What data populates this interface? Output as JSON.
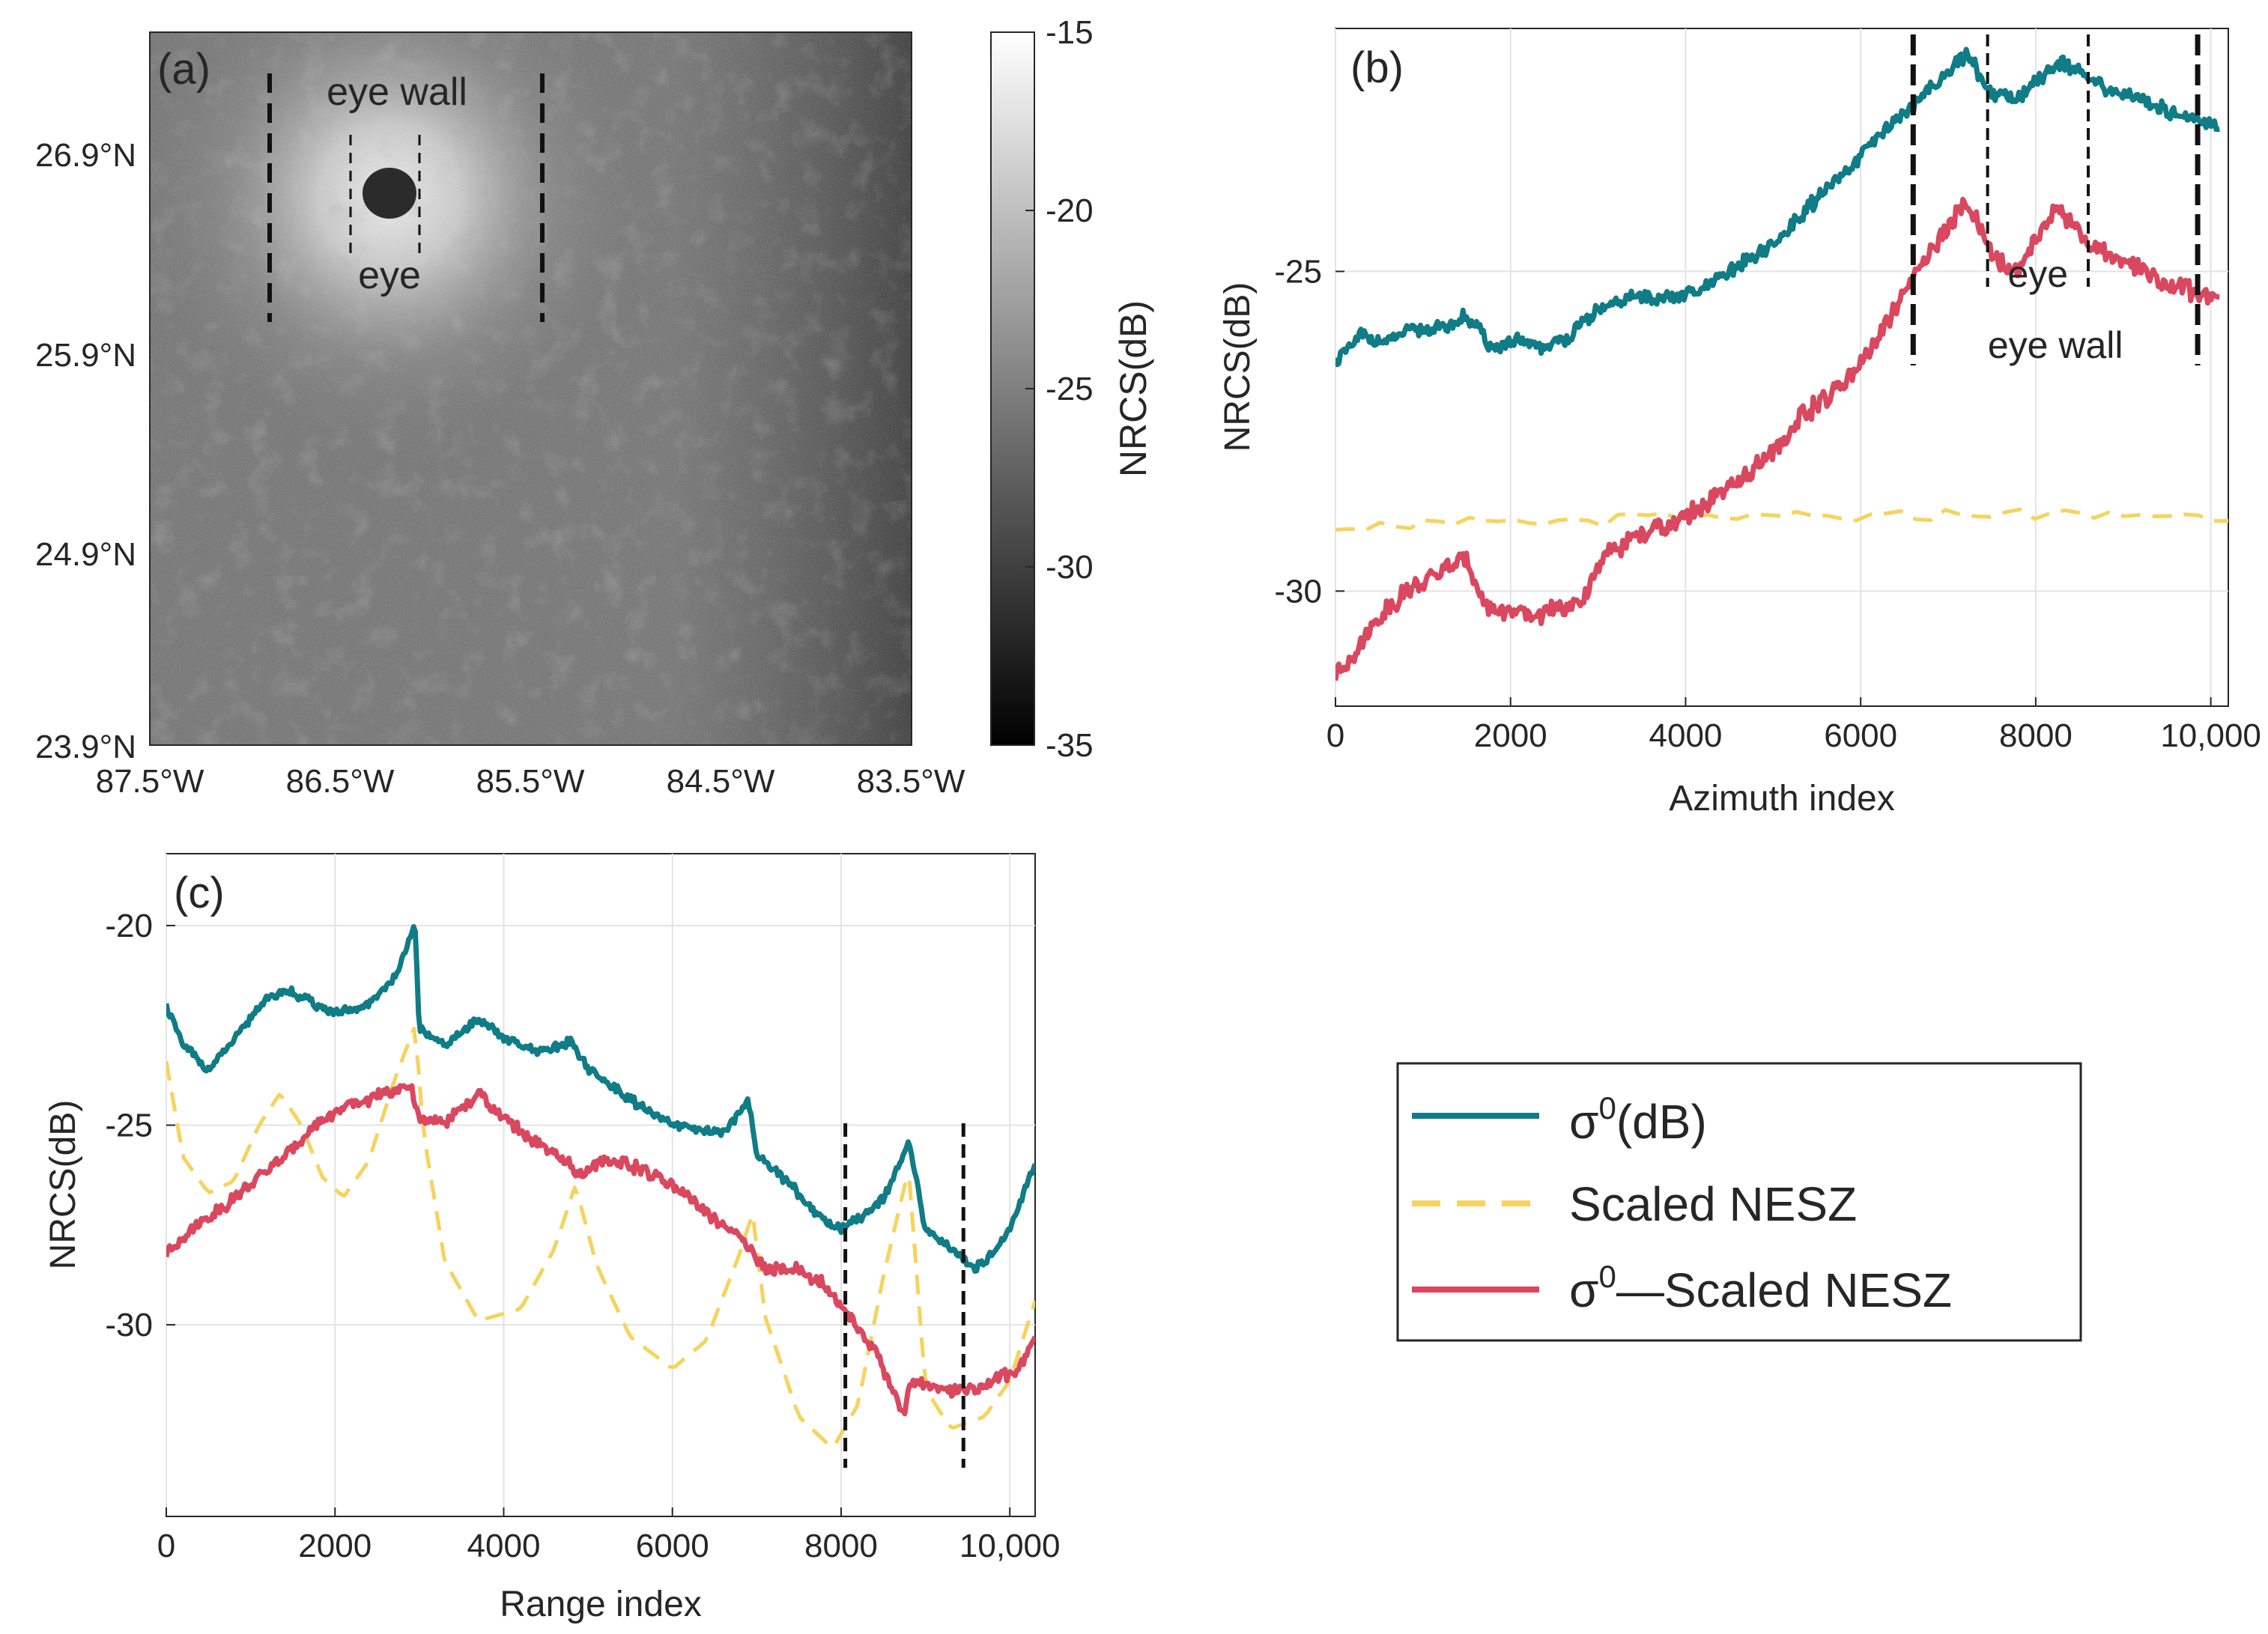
{
  "figure": {
    "colors": {
      "sigma": "#0f7c86",
      "nesz": "#f6d35e",
      "corrected": "#d9485f",
      "axis": "#262626",
      "grid": "#e3e3e3"
    }
  },
  "panel_a": {
    "label": "(a)",
    "lat_labels": [
      "26.9°N",
      "25.9°N",
      "24.9°N",
      "23.9°N"
    ],
    "lon_labels": [
      "87.5°W",
      "86.5°W",
      "85.5°W",
      "84.5°W",
      "83.5°W"
    ],
    "annotation_eye_wall": "eye wall",
    "annotation_eye": "eye",
    "colorbar": {
      "label": "NRCS(dB)",
      "ticks": [
        "-15",
        "-20",
        "-25",
        "-30",
        "-35"
      ],
      "range": [
        -35,
        -15
      ]
    }
  },
  "legend": {
    "sigma_base": "σ",
    "sigma_sup": "0",
    "sigma_tail": "(dB)",
    "nesz": "Scaled NESZ",
    "corr_base": "σ",
    "corr_sup": "0",
    "corr_tail": "—Scaled NESZ"
  },
  "chart_data": [
    {
      "id": "b",
      "type": "line",
      "panel_label": "(b)",
      "xlabel": "Azimuth index",
      "ylabel": "NRCS(dB)",
      "xlim": [
        0,
        10200
      ],
      "ylim": [
        -31.8,
        -21.2
      ],
      "xticks": [
        0,
        2000,
        4000,
        6000,
        8000,
        10000
      ],
      "xtick_labels": [
        "0",
        "2000",
        "4000",
        "6000",
        "8000",
        "10,000"
      ],
      "yticks": [
        -25,
        -30
      ],
      "ytick_labels": [
        "-25",
        "-30"
      ],
      "annotations": {
        "eye": "eye",
        "eye_wall": "eye wall"
      },
      "eye_bounds": [
        7450,
        8600
      ],
      "eye_wall_bounds": [
        6600,
        9850
      ],
      "series": [
        {
          "name": "σ0(dB)",
          "key": "sigma",
          "x": [
            0,
            300,
            600,
            900,
            1200,
            1500,
            1800,
            2100,
            2400,
            2700,
            3000,
            3400,
            3800,
            4200,
            4600,
            5000,
            5400,
            5800,
            6200,
            6600,
            6900,
            7200,
            7500,
            7800,
            8100,
            8300,
            8600,
            8900,
            9200,
            9500,
            9800,
            10100
          ],
          "y": [
            -26.4,
            -26.0,
            -26.1,
            -25.9,
            -25.9,
            -25.7,
            -26.2,
            -26.1,
            -26.2,
            -26.0,
            -25.6,
            -25.4,
            -25.4,
            -25.3,
            -24.9,
            -24.6,
            -24.0,
            -23.5,
            -22.9,
            -22.4,
            -22.0,
            -21.6,
            -22.2,
            -22.3,
            -21.9,
            -21.7,
            -22.0,
            -22.2,
            -22.3,
            -22.5,
            -22.6,
            -22.7
          ]
        },
        {
          "name": "Scaled NESZ",
          "key": "nesz",
          "x": [
            0,
            1000,
            2000,
            3000,
            4000,
            5000,
            6000,
            7000,
            8000,
            9000,
            10200
          ],
          "y": [
            -28.95,
            -28.95,
            -28.95,
            -28.9,
            -28.85,
            -28.85,
            -28.85,
            -28.8,
            -28.8,
            -28.8,
            -28.85
          ]
        },
        {
          "name": "σ0—Scaled NESZ",
          "key": "corrected",
          "x": [
            0,
            200,
            500,
            800,
            1100,
            1300,
            1500,
            1700,
            1900,
            2200,
            2500,
            2800,
            3100,
            3500,
            3900,
            4300,
            4700,
            5000,
            5300,
            5700,
            6100,
            6500,
            6800,
            7000,
            7200,
            7400,
            7600,
            7800,
            8000,
            8200,
            8400,
            8600,
            8900,
            9200,
            9500,
            9800,
            10100
          ],
          "y": [
            -31.3,
            -31.0,
            -30.4,
            -30.0,
            -29.8,
            -29.6,
            -29.5,
            -30.2,
            -30.3,
            -30.4,
            -30.3,
            -30.2,
            -29.4,
            -29.1,
            -28.9,
            -28.6,
            -28.2,
            -27.8,
            -27.3,
            -26.9,
            -26.3,
            -25.3,
            -24.7,
            -24.3,
            -23.9,
            -24.4,
            -24.9,
            -25.0,
            -24.5,
            -24.0,
            -24.2,
            -24.6,
            -24.8,
            -25.0,
            -25.2,
            -25.3,
            -25.4
          ]
        }
      ]
    },
    {
      "id": "c",
      "type": "line",
      "panel_label": "(c)",
      "xlabel": "Range index",
      "ylabel": "NRCS(dB)",
      "xlim": [
        0,
        10300
      ],
      "ylim": [
        -34.8,
        -18.2
      ],
      "xticks": [
        0,
        2000,
        4000,
        6000,
        8000,
        10000
      ],
      "xtick_labels": [
        "0",
        "2000",
        "4000",
        "6000",
        "8000",
        "10,000"
      ],
      "yticks": [
        -20,
        -25,
        -30
      ],
      "ytick_labels": [
        "-20",
        "-25",
        "-30"
      ],
      "markers_x": [
        8050,
        9450
      ],
      "series": [
        {
          "name": "σ0(dB)",
          "key": "sigma",
          "x": [
            0,
            200,
            500,
            800,
            1100,
            1400,
            1700,
            2000,
            2300,
            2600,
            2800,
            2950,
            3000,
            3300,
            3500,
            3700,
            4000,
            4400,
            4800,
            5000,
            5400,
            5800,
            6200,
            6600,
            6900,
            7000,
            7400,
            7800,
            8000,
            8300,
            8500,
            8700,
            8800,
            9000,
            9300,
            9600,
            9800,
            10000,
            10300
          ],
          "y": [
            -22.0,
            -23.0,
            -23.6,
            -22.9,
            -22.0,
            -21.6,
            -21.9,
            -22.2,
            -22.1,
            -21.6,
            -20.9,
            -20.0,
            -22.6,
            -23.0,
            -22.7,
            -22.3,
            -22.8,
            -23.2,
            -22.9,
            -23.6,
            -24.2,
            -24.8,
            -25.1,
            -25.2,
            -24.4,
            -25.7,
            -26.5,
            -27.4,
            -27.6,
            -27.2,
            -26.8,
            -26.0,
            -25.4,
            -27.6,
            -28.1,
            -28.6,
            -28.2,
            -27.6,
            -25.9
          ]
        },
        {
          "name": "Scaled NESZ",
          "key": "nesz",
          "x": [
            0,
            200,
            500,
            800,
            1100,
            1350,
            1600,
            1850,
            2100,
            2400,
            2700,
            2950,
            3050,
            3300,
            3700,
            4200,
            4600,
            4850,
            5100,
            5500,
            6000,
            6400,
            6800,
            6950,
            7100,
            7500,
            7900,
            8200,
            8500,
            8800,
            9000,
            9300,
            9700,
            10000,
            10300
          ],
          "y": [
            -23.4,
            -25.8,
            -26.7,
            -26.4,
            -25.0,
            -24.2,
            -25.0,
            -26.3,
            -26.8,
            -25.9,
            -23.9,
            -22.5,
            -25.2,
            -28.4,
            -29.9,
            -29.6,
            -28.1,
            -26.5,
            -28.5,
            -30.3,
            -31.1,
            -30.4,
            -28.2,
            -27.2,
            -29.8,
            -32.3,
            -33.1,
            -32.0,
            -28.8,
            -26.1,
            -31.6,
            -32.6,
            -32.3,
            -31.4,
            -29.4
          ]
        },
        {
          "name": "σ0—Scaled NESZ",
          "key": "corrected",
          "x": [
            0,
            300,
            700,
            1100,
            1500,
            1800,
            2200,
            2600,
            2800,
            2900,
            3000,
            3300,
            3500,
            3700,
            4000,
            4400,
            4800,
            4900,
            5200,
            5600,
            6000,
            6400,
            6800,
            7100,
            7500,
            7800,
            8100,
            8400,
            8600,
            8750,
            8800,
            9000,
            9300,
            9600,
            9900,
            10100,
            10300
          ],
          "y": [
            -28.2,
            -27.6,
            -27.0,
            -26.3,
            -25.6,
            -24.9,
            -24.5,
            -24.2,
            -24.1,
            -24.0,
            -24.9,
            -24.9,
            -24.6,
            -24.2,
            -24.8,
            -25.5,
            -26.0,
            -26.3,
            -25.8,
            -26.1,
            -26.5,
            -27.2,
            -27.8,
            -28.6,
            -28.6,
            -29.0,
            -29.8,
            -30.6,
            -31.6,
            -32.3,
            -31.5,
            -31.5,
            -31.7,
            -31.6,
            -31.3,
            -31.1,
            -30.3
          ]
        }
      ]
    }
  ]
}
